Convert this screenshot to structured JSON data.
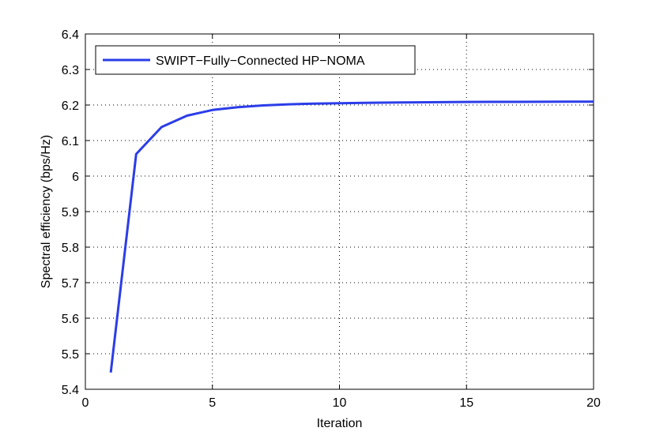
{
  "chart_data": {
    "type": "line",
    "title": "",
    "xlabel": "Iteration",
    "ylabel": "Spectral efficiency (bps/Hz)",
    "xlim": [
      0,
      20
    ],
    "ylim": [
      5.4,
      6.4
    ],
    "xticks": [
      0,
      5,
      10,
      15,
      20
    ],
    "yticks": [
      5.4,
      5.5,
      5.6,
      5.7,
      5.8,
      5.9,
      6,
      6.1,
      6.2,
      6.3,
      6.4
    ],
    "xtick_labels": [
      "0",
      "5",
      "10",
      "15",
      "20"
    ],
    "ytick_labels": [
      "5.4",
      "5.5",
      "5.6",
      "5.7",
      "5.8",
      "5.9",
      "6",
      "6.1",
      "6.2",
      "6.3",
      "6.4"
    ],
    "grid": true,
    "legend_position": "top-left",
    "series": [
      {
        "name": "SWIPT−Fully−Connected HP−NOMA",
        "color": "#2b3de8",
        "x": [
          1,
          2,
          3,
          4,
          5,
          6,
          7,
          8,
          9,
          10,
          11,
          12,
          13,
          14,
          15,
          16,
          17,
          18,
          19,
          20
        ],
        "y": [
          5.447,
          6.062,
          6.138,
          6.17,
          6.186,
          6.194,
          6.199,
          6.202,
          6.204,
          6.205,
          6.206,
          6.207,
          6.2075,
          6.208,
          6.2085,
          6.209,
          6.209,
          6.2092,
          6.2094,
          6.2095
        ]
      }
    ]
  }
}
